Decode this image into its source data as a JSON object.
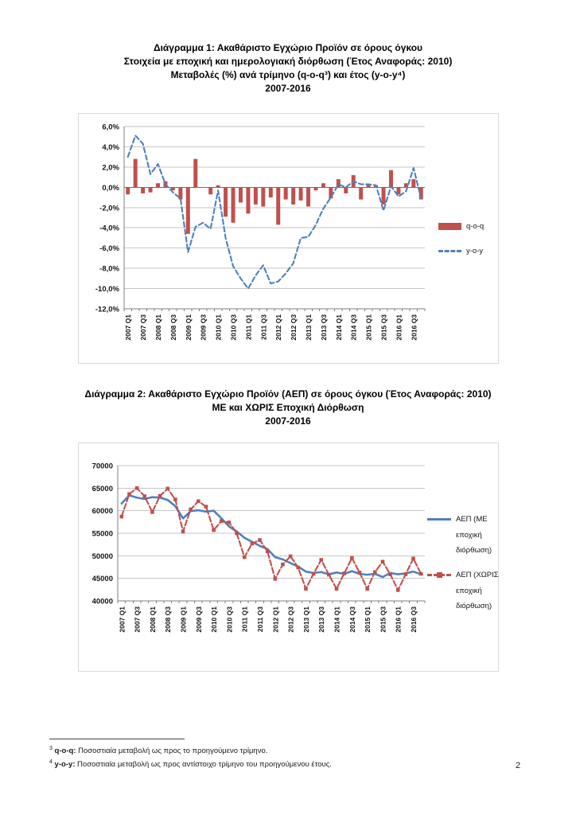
{
  "page": {
    "number": "2"
  },
  "chart1": {
    "title_lines": [
      "Διάγραμμα 1: Ακαθάριστο Εγχώριο Προϊόν σε όρους όγκου",
      "Στοιχεία με εποχική και ημερολογιακή διόρθωση (Έτος Αναφοράς: 2010)",
      "Μεταβολές (%) ανά τρίμηνο (q-o-q³) και έτος (y-o-y⁴)",
      "2007-2016"
    ]
  },
  "chart2": {
    "title_lines": [
      "Διάγραμμα 2: Ακαθάριστο Εγχώριο Προϊόν (ΑΕΠ) σε όρους όγκου (Έτος Αναφοράς: 2010)",
      "ΜΕ και ΧΩΡΙΣ Εποχική Διόρθωση",
      "2007-2016"
    ]
  },
  "footnotes": [
    {
      "marker": "3",
      "term": "q-o-q:",
      "text": " Ποσοστιαία μεταβολή ως προς το προηγούμενο τρίμηνο."
    },
    {
      "marker": "4",
      "term": "y-o-y:",
      "text": " Ποσοστιαία μεταβολή ως προς αντίστοιχο τρίμηνο του προηγούμενου έτους."
    }
  ],
  "chart_data": [
    {
      "type": "bar",
      "subtype": "bar+line combo",
      "title": "Διάγραμμα 1: Ακαθάριστο Εγχώριο Προϊόν σε όρους όγκου — Μεταβολές (%) ανά τρίμηνο (q-o-q) και έτος (y-o-y), 2007-2016",
      "xlabel": "",
      "ylabel": "",
      "ylim": [
        -12,
        6
      ],
      "ytick_step": 2,
      "ytick_labels": [
        "6,0%",
        "4,0%",
        "2,0%",
        "0,0%",
        "-2,0%",
        "-4,0%",
        "-6,0%",
        "-8,0%",
        "-10,0%",
        "-12,0%"
      ],
      "x_tick_every": 2,
      "grid": true,
      "legend_position": "right",
      "categories": [
        "2007 Q1",
        "2007 Q2",
        "2007 Q3",
        "2007 Q4",
        "2008 Q1",
        "2008 Q2",
        "2008 Q3",
        "2008 Q4",
        "2009 Q1",
        "2009 Q2",
        "2009 Q3",
        "2009 Q4",
        "2010 Q1",
        "2010 Q2",
        "2010 Q3",
        "2010 Q4",
        "2011 Q1",
        "2011 Q2",
        "2011 Q3",
        "2011 Q4",
        "2012 Q1",
        "2012 Q2",
        "2012 Q3",
        "2012 Q4",
        "2013 Q1",
        "2013 Q2",
        "2013 Q3",
        "2013 Q4",
        "2014 Q1",
        "2014 Q2",
        "2014 Q3",
        "2014 Q4",
        "2015 Q1",
        "2015 Q2",
        "2015 Q3",
        "2015 Q4",
        "2016 Q1",
        "2016 Q2",
        "2016 Q3",
        "2016 Q4"
      ],
      "series": [
        {
          "name": "q-o-q",
          "slug": "qoq-bars",
          "type": "bar",
          "color": "#C0504D",
          "values": [
            -0.7,
            2.8,
            -0.6,
            -0.5,
            0.4,
            0.6,
            -0.3,
            -1.2,
            -4.6,
            2.8,
            0.0,
            -0.7,
            0.2,
            -2.9,
            -3.5,
            -1.5,
            -2.6,
            -1.7,
            -1.9,
            -1.0,
            -3.7,
            -1.2,
            -1.7,
            -1.3,
            -1.9,
            -0.3,
            0.4,
            -1.1,
            0.8,
            -0.6,
            1.2,
            -1.2,
            0.3,
            0.2,
            -1.7,
            1.7,
            -0.7,
            0.4,
            0.8,
            -1.2
          ]
        },
        {
          "name": "y-o-y",
          "slug": "yoy-line",
          "type": "line",
          "style": "dashed",
          "color": "#4F81BD",
          "values": [
            3.0,
            5.1,
            4.3,
            1.3,
            2.3,
            0.3,
            -0.5,
            -1.1,
            -6.4,
            -3.9,
            -3.5,
            -4.1,
            -0.3,
            -5.0,
            -7.8,
            -9.0,
            -10.0,
            -8.7,
            -7.7,
            -9.5,
            -9.3,
            -8.5,
            -7.5,
            -5.0,
            -4.9,
            -3.7,
            -2.1,
            -1.0,
            0.3,
            0.0,
            0.6,
            0.3,
            0.3,
            0.2,
            -2.3,
            0.1,
            -0.9,
            -0.4,
            1.9,
            -1.1
          ]
        }
      ]
    },
    {
      "type": "line",
      "title": "Διάγραμμα 2: Ακαθάριστο Εγχώριο Προϊόν (ΑΕΠ) σε όρους όγκου (Έτος Αναφοράς: 2010), ΜΕ και ΧΩΡΙΣ Εποχική Διόρθωση, 2007-2016",
      "xlabel": "",
      "ylabel": "",
      "ylim": [
        40000,
        70000
      ],
      "ytick_step": 5000,
      "ytick_labels": [
        "70000",
        "65000",
        "60000",
        "55000",
        "50000",
        "45000",
        "40000"
      ],
      "x_tick_every": 2,
      "grid": true,
      "legend_position": "right",
      "categories": [
        "2007 Q1",
        "2007 Q2",
        "2007 Q3",
        "2007 Q4",
        "2008 Q1",
        "2008 Q2",
        "2008 Q3",
        "2008 Q4",
        "2009 Q1",
        "2009 Q2",
        "2009 Q3",
        "2009 Q4",
        "2010 Q1",
        "2010 Q2",
        "2010 Q3",
        "2010 Q4",
        "2011 Q1",
        "2011 Q2",
        "2011 Q3",
        "2011 Q4",
        "2012 Q1",
        "2012 Q2",
        "2012 Q3",
        "2012 Q4",
        "2013 Q1",
        "2013 Q2",
        "2013 Q3",
        "2013 Q4",
        "2014 Q1",
        "2014 Q2",
        "2014 Q3",
        "2014 Q4",
        "2015 Q1",
        "2015 Q2",
        "2015 Q3",
        "2015 Q4",
        "2016 Q1",
        "2016 Q2",
        "2016 Q3",
        "2016 Q4"
      ],
      "series": [
        {
          "name": "ΑΕΠ (ΜΕ εποχική διόρθωση)",
          "slug": "gdp-sa-line",
          "type": "line",
          "style": "solid",
          "color": "#4F81BD",
          "values": [
            61600,
            63400,
            62900,
            62600,
            63000,
            62900,
            62400,
            61000,
            58300,
            59900,
            60100,
            59800,
            60000,
            58300,
            56500,
            55400,
            54000,
            53100,
            52200,
            51500,
            49700,
            49200,
            48400,
            47600,
            46500,
            46200,
            46400,
            45900,
            46300,
            46000,
            46600,
            46000,
            45800,
            46000,
            45300,
            46200,
            45900,
            46100,
            46500,
            45900
          ]
        },
        {
          "name": "ΑΕΠ (ΧΩΡΙΣ εποχική διόρθωση)",
          "slug": "gdp-nsa-line",
          "type": "line",
          "style": "dashed",
          "marker": "square",
          "color": "#C0504D",
          "values": [
            58700,
            63700,
            65000,
            63200,
            59700,
            63300,
            64900,
            62500,
            55400,
            60300,
            62100,
            60900,
            55700,
            57700,
            57400,
            55000,
            49700,
            52700,
            53500,
            51000,
            44900,
            48100,
            49900,
            47400,
            42700,
            46000,
            49100,
            45800,
            42700,
            46100,
            49500,
            46300,
            42700,
            46400,
            48700,
            45900,
            42400,
            45900,
            49400,
            46000
          ]
        }
      ]
    }
  ]
}
